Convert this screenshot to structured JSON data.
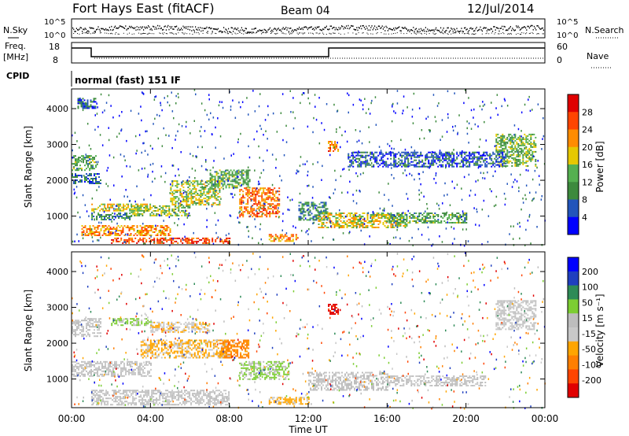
{
  "header": {
    "station": "Fort Hays East (fitACF)",
    "beam": "Beam 04",
    "date": "12/Jul/2014"
  },
  "noise_panel": {
    "left_label": "N.Sky",
    "right_label": "N.Search",
    "left_ticks": [
      "10^5",
      "10^0"
    ],
    "right_ticks": [
      "10^5",
      "10^0"
    ]
  },
  "freq_panel": {
    "left_label_1": "Freq.",
    "left_label_2": "[MHz]",
    "left_ticks": [
      "18",
      "8"
    ],
    "right_label": "Nave",
    "right_ticks": [
      "60",
      "0"
    ],
    "cpid_label": "CPID",
    "cpid_text": "normal (fast) 151 IF"
  },
  "colors": {
    "power_scale": [
      "#0000ff",
      "#2255bb",
      "#3d8a3d",
      "#55b050",
      "#e6c800",
      "#ff8c00",
      "#ff4500",
      "#e00000"
    ],
    "velocity_scale": [
      "#0000ff",
      "#1f3fbf",
      "#2e8b57",
      "#7ccd32",
      "#bdbdbd",
      "#c8c8c8",
      "#ffa500",
      "#ff7f00",
      "#ff4500",
      "#e00000"
    ]
  },
  "chart_data": [
    {
      "type": "heatmap",
      "name": "power",
      "ylabel": "Slant Range [km]",
      "yticks": [
        1000,
        2000,
        3000,
        4000
      ],
      "ylim": [
        200,
        4550
      ],
      "xlim": [
        0,
        24
      ],
      "colorbar": {
        "label": "Power [dB]",
        "ticks": [
          4,
          8,
          12,
          16,
          20,
          24,
          28
        ],
        "range": [
          0,
          32
        ]
      },
      "bands": [
        {
          "t": [
            0.0,
            1.2
          ],
          "r": [
            2300,
            2700
          ],
          "v": 12
        },
        {
          "t": [
            0.0,
            1.5
          ],
          "r": [
            1900,
            2200
          ],
          "v": 8
        },
        {
          "t": [
            0.3,
            1.2
          ],
          "r": [
            4000,
            4300
          ],
          "v": 6
        },
        {
          "t": [
            1.0,
            4.0
          ],
          "r": [
            1150,
            1350
          ],
          "v": 18
        },
        {
          "t": [
            1.0,
            3.0
          ],
          "r": [
            900,
            1100
          ],
          "v": 10
        },
        {
          "t": [
            0.5,
            5.0
          ],
          "r": [
            450,
            750
          ],
          "v": 22
        },
        {
          "t": [
            2.0,
            8.0
          ],
          "r": [
            250,
            400
          ],
          "v": 26
        },
        {
          "t": [
            3.0,
            6.0
          ],
          "r": [
            1000,
            1300
          ],
          "v": 14
        },
        {
          "t": [
            5.0,
            7.5
          ],
          "r": [
            1300,
            2000
          ],
          "v": 16
        },
        {
          "t": [
            7.0,
            9.0
          ],
          "r": [
            1800,
            2300
          ],
          "v": 12
        },
        {
          "t": [
            8.5,
            10.5
          ],
          "r": [
            1000,
            1800
          ],
          "v": 24
        },
        {
          "t": [
            10.0,
            11.5
          ],
          "r": [
            300,
            500
          ],
          "v": 22
        },
        {
          "t": [
            11.5,
            13.0
          ],
          "r": [
            900,
            1400
          ],
          "v": 10
        },
        {
          "t": [
            12.5,
            17.0
          ],
          "r": [
            700,
            1100
          ],
          "v": 18
        },
        {
          "t": [
            16.0,
            20.0
          ],
          "r": [
            800,
            1100
          ],
          "v": 12
        },
        {
          "t": [
            13.0,
            13.5
          ],
          "r": [
            2800,
            3100
          ],
          "v": 24
        },
        {
          "t": [
            21.5,
            23.5
          ],
          "r": [
            2400,
            3300
          ],
          "v": 14
        },
        {
          "t": [
            14.0,
            22.0
          ],
          "r": [
            2400,
            2800
          ],
          "v": 6
        }
      ]
    },
    {
      "type": "heatmap",
      "name": "velocity",
      "ylabel": "Slant Range [km]",
      "xlabel": "Time UT",
      "xticks": [
        "00:00",
        "04:00",
        "08:00",
        "12:00",
        "16:00",
        "20:00",
        "00:00"
      ],
      "yticks": [
        1000,
        2000,
        3000,
        4000
      ],
      "ylim": [
        200,
        4550
      ],
      "xlim": [
        0,
        24
      ],
      "colorbar": {
        "label": "Velocity [m s⁻¹]",
        "ticks": [
          200,
          100,
          50,
          15,
          -15,
          -50,
          -100,
          -200
        ],
        "range": [
          -250,
          250
        ]
      },
      "bands": [
        {
          "t": [
            0.0,
            4.0
          ],
          "r": [
            1100,
            1500
          ],
          "v": 0
        },
        {
          "t": [
            0.0,
            1.5
          ],
          "r": [
            2200,
            2700
          ],
          "v": 0
        },
        {
          "t": [
            2.0,
            4.0
          ],
          "r": [
            2500,
            2700
          ],
          "v": 60
        },
        {
          "t": [
            3.5,
            8.0
          ],
          "r": [
            1600,
            2100
          ],
          "v": -60
        },
        {
          "t": [
            4.0,
            7.0
          ],
          "r": [
            2300,
            2600
          ],
          "v": -40
        },
        {
          "t": [
            1.0,
            8.0
          ],
          "r": [
            300,
            700
          ],
          "v": 0
        },
        {
          "t": [
            7.5,
            9.0
          ],
          "r": [
            1600,
            2100
          ],
          "v": -120
        },
        {
          "t": [
            8.5,
            11.0
          ],
          "r": [
            1000,
            1500
          ],
          "v": 60
        },
        {
          "t": [
            10.0,
            12.0
          ],
          "r": [
            300,
            500
          ],
          "v": -60
        },
        {
          "t": [
            12.0,
            16.0
          ],
          "r": [
            700,
            1200
          ],
          "v": 0
        },
        {
          "t": [
            16.0,
            21.0
          ],
          "r": [
            800,
            1100
          ],
          "v": 0
        },
        {
          "t": [
            13.0,
            13.5
          ],
          "r": [
            2800,
            3100
          ],
          "v": -220
        },
        {
          "t": [
            21.5,
            23.5
          ],
          "r": [
            2400,
            3200
          ],
          "v": 0
        }
      ]
    }
  ]
}
